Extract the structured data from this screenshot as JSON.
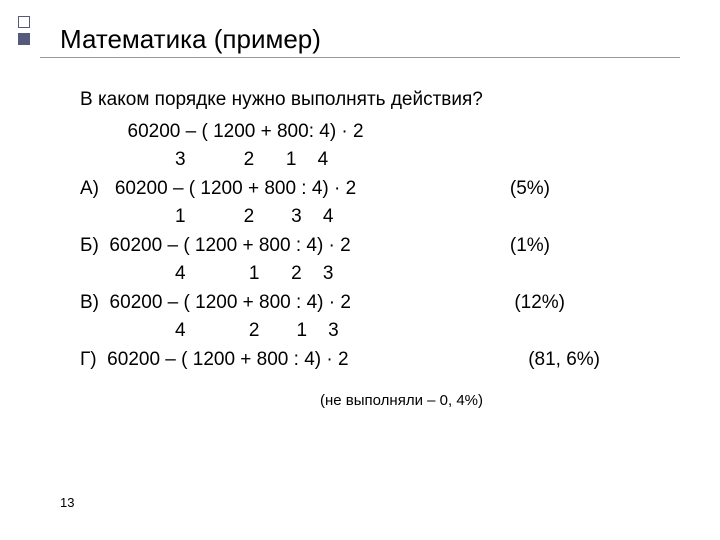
{
  "title": "Математика (пример)",
  "question": "В каком порядке нужно выполнять действия?",
  "main_expr": "         60200 – ( 1200 + 800: 4) · 2",
  "order_a": "                  3           2      1    4",
  "opt_a_label": "А)",
  "opt_a_expr": "   60200 – ( 1200 + 800 : 4) · 2",
  "opt_a_pct": "(5%)",
  "order_b": "                  1           2       3    4",
  "opt_b_label": "Б)",
  "opt_b_expr": "  60200 – ( 1200 + 800 : 4) · 2",
  "opt_b_pct": "(1%)",
  "order_c": "                  4            1      2    3",
  "opt_c_label": "В)",
  "opt_c_expr": "  60200 – ( 1200 + 800 : 4) · 2",
  "opt_c_pct": "(12%)",
  "order_d": "                  4            2       1    3",
  "opt_d_label": "Г)",
  "opt_d_expr": "  60200 – ( 1200 + 800 : 4) · 2",
  "opt_d_pct": "(81, 6%)",
  "note": "(не выполняли – 0, 4%)",
  "page_num": "13",
  "colors": {
    "accent": "#555a7a",
    "text": "#000000",
    "bg": "#ffffff",
    "line": "#999999"
  },
  "fontsize": {
    "title": 26,
    "body": 19,
    "note": 15,
    "footer": 13
  }
}
